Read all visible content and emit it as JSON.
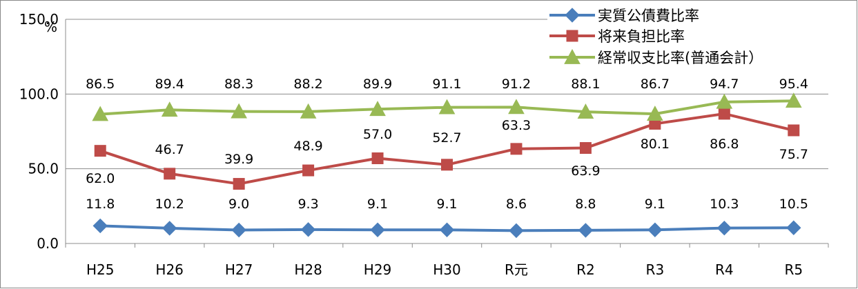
{
  "chart_data": {
    "type": "line",
    "title": "",
    "xlabel": "",
    "ylabel": "",
    "unit": "%",
    "ylim": [
      0,
      150
    ],
    "y_ticks": [
      "0.0",
      "50.0",
      "100.0",
      "150.0"
    ],
    "grid": true,
    "legend_position": "top-right",
    "categories": [
      "H25",
      "H26",
      "H27",
      "H28",
      "H29",
      "H30",
      "R元",
      "R2",
      "R3",
      "R4",
      "R5"
    ],
    "series": [
      {
        "name": "実質公債費比率",
        "color": "#4a7ebb",
        "marker": "diamond",
        "values": [
          11.8,
          10.2,
          9.0,
          9.3,
          9.1,
          9.1,
          8.6,
          8.8,
          9.1,
          10.3,
          10.5
        ],
        "labels": [
          "11.8",
          "10.2",
          "9.0",
          "9.3",
          "9.1",
          "9.1",
          "8.6",
          "8.8",
          "9.1",
          "10.3",
          "10.5"
        ]
      },
      {
        "name": "将来負担比率",
        "color": "#be4b48",
        "marker": "square",
        "values": [
          62.0,
          46.7,
          39.9,
          48.9,
          57.0,
          52.7,
          63.3,
          63.9,
          80.1,
          86.8,
          75.7
        ],
        "labels": [
          "62.0",
          "46.7",
          "39.9",
          "48.9",
          "57.0",
          "52.7",
          "63.3",
          "63.9",
          "80.1",
          "86.8",
          "75.7"
        ]
      },
      {
        "name": "経常収支比率(普通会計）",
        "color": "#98b954",
        "marker": "triangle",
        "values": [
          86.5,
          89.4,
          88.3,
          88.2,
          89.9,
          91.1,
          91.2,
          88.1,
          86.7,
          94.7,
          95.4
        ],
        "labels": [
          "86.5",
          "89.4",
          "88.3",
          "88.2",
          "89.9",
          "91.1",
          "91.2",
          "88.1",
          "86.7",
          "94.7",
          "95.4"
        ]
      }
    ]
  }
}
